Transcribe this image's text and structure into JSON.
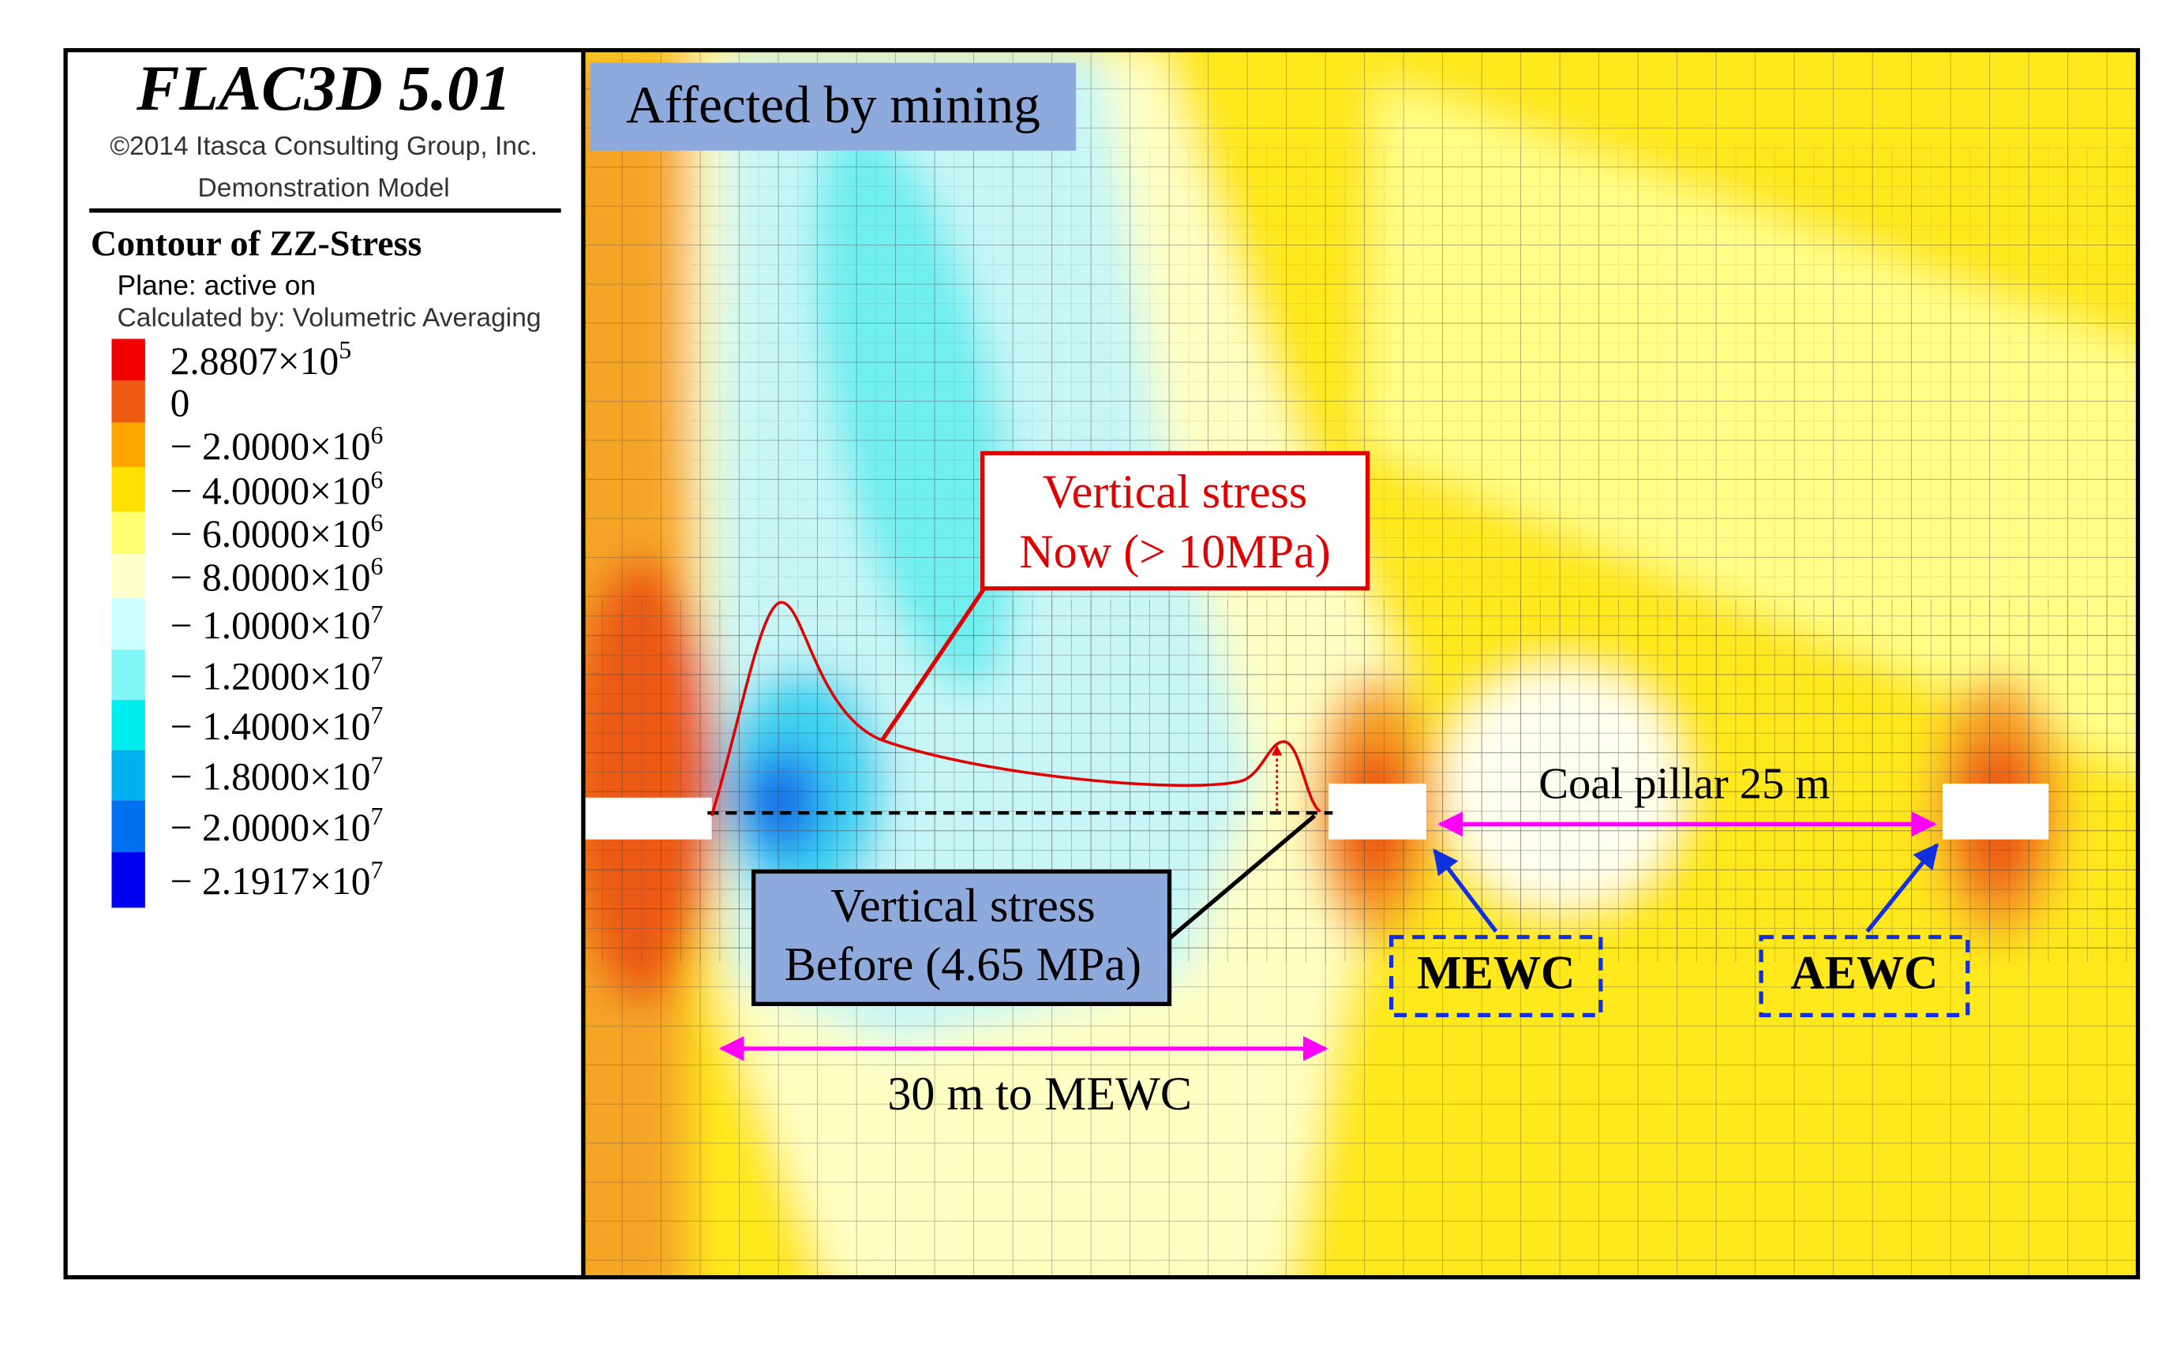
{
  "header": {
    "title": "FLAC3D 5.01",
    "copyright": "©2014 Itasca Consulting Group, Inc.",
    "model": "Demonstration Model"
  },
  "legend": {
    "title": "Contour of ZZ-Stress",
    "plane": "Plane: active on",
    "method": "Calculated by: Volumetric Averaging",
    "entries": [
      {
        "color": "#f00000",
        "label": "2.8807×10",
        "exponent": "5"
      },
      {
        "color": "#f05a10",
        "label": "0"
      },
      {
        "color": "#ffa500",
        "label": "− 2.0000×10",
        "exponent": "6"
      },
      {
        "color": "#ffe000",
        "label": "− 4.0000×10",
        "exponent": "6"
      },
      {
        "color": "#ffff70",
        "label": "− 6.0000×10",
        "exponent": "6"
      },
      {
        "color": "#ffffcc",
        "label": "− 8.0000×10",
        "exponent": "6"
      },
      {
        "color": "#ccffff",
        "label": "− 1.0000×10",
        "exponent": "7"
      },
      {
        "color": "#80f8f8",
        "label": "− 1.2000×10",
        "exponent": "7"
      },
      {
        "color": "#00eef0",
        "label": "− 1.4000×10",
        "exponent": "7"
      },
      {
        "color": "#00b0f0",
        "label": "− 1.8000×10",
        "exponent": "7"
      },
      {
        "color": "#0070f0",
        "label": "− 2.0000×10",
        "exponent": "7"
      },
      {
        "color": "#0000f0",
        "label": "− 2.1917×10",
        "exponent": "7"
      }
    ]
  },
  "annotations": {
    "condition": "Affected by mining",
    "now": [
      "Vertical stress",
      "Now (> 10MPa)"
    ],
    "before": [
      "Vertical stress",
      "Before (4.65 MPa)"
    ],
    "pillar": "Coal pillar 25 m",
    "mewc": "MEWC",
    "aewc": "AEWC",
    "distance": "30 m to MEWC"
  }
}
